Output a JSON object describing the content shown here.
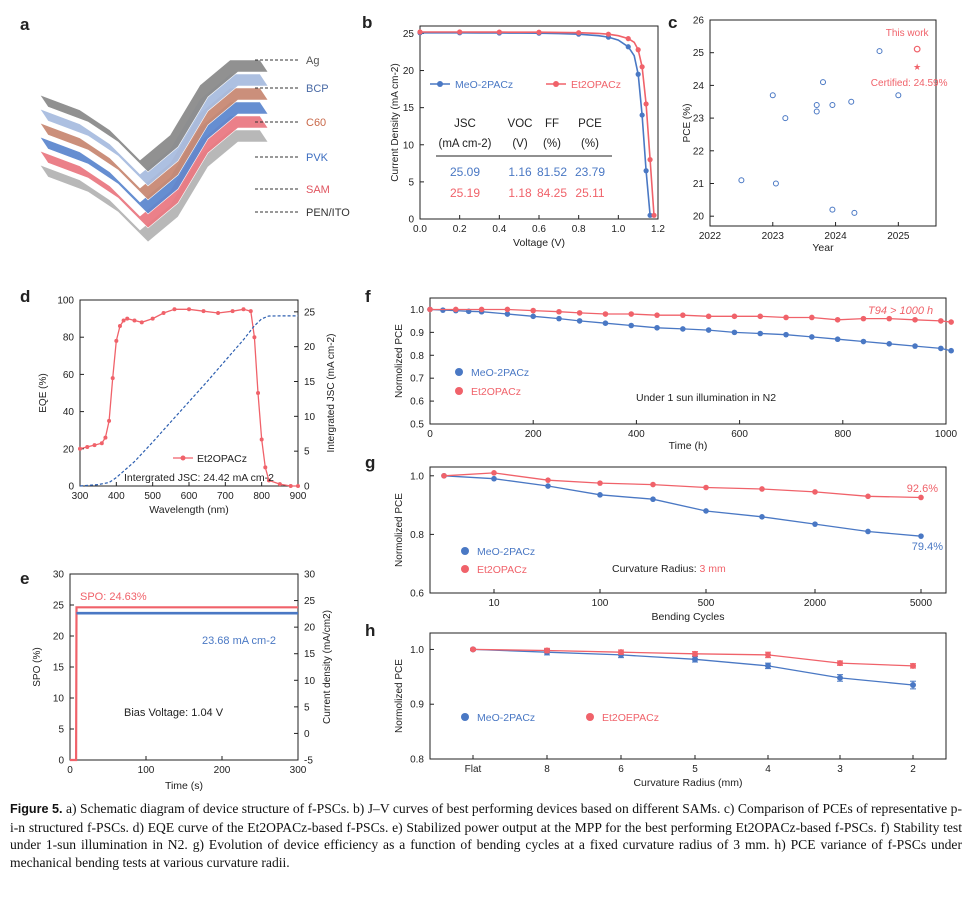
{
  "caption": {
    "label": "Figure 5.",
    "text": "a) Schematic diagram of device structure of f-PSCs. b) J–V curves of best performing devices based on different SAMs. c) Comparison of PCEs of representative p-i-n structured f-PSCs. d) EQE curve of the Et2OPACz-based f-PSCs. e) Stabilized power output at the MPP for the best performing Et2OPACz-based f-PSCs. f) Stability test under 1-sun illumination in N2. g) Evolution of device efficiency as a function of bending cycles at a fixed curvature radius of 3 mm. h) PCE variance of f-PSCs under mechanical bending tests at various curvature radii."
  },
  "colors": {
    "blue": "#4a78c4",
    "red": "#f0626a",
    "blue_dash": "#2d5fb0"
  },
  "panel_a": {
    "letter": "a",
    "layers": [
      {
        "name": "Ag",
        "color": "#8c8c8c",
        "label_color": "#555555"
      },
      {
        "name": "BCP",
        "color": "#a9bde0",
        "label_color": "#4a6aa5"
      },
      {
        "name": "C60",
        "color": "#c98a74",
        "label_color": "#c9694a"
      },
      {
        "name": "PVK",
        "color": "#5e88cf",
        "label_color": "#3c6dc0"
      },
      {
        "name": "SAM",
        "color": "#ea7a83",
        "label_color": "#e05560"
      },
      {
        "name": "PEN/ITO",
        "color": "#b5b5b5",
        "label_color": "#333333"
      }
    ]
  },
  "chart_data": [
    {
      "panel": "b",
      "type": "line",
      "xlabel": "Voltage (V)",
      "ylabel": "Current Density (mA cm-2)",
      "xlim": [
        0,
        1.2
      ],
      "ylim": [
        0,
        26
      ],
      "xticks": [
        "0.0",
        "0.2",
        "0.4",
        "0.6",
        "0.8",
        "1.0",
        "1.2"
      ],
      "yticks": [
        "0",
        "5",
        "10",
        "15",
        "20",
        "25"
      ],
      "series": [
        {
          "name": "MeO-2PACz",
          "color": "blue",
          "x": [
            0,
            0.1,
            0.2,
            0.3,
            0.4,
            0.5,
            0.6,
            0.7,
            0.8,
            0.9,
            0.95,
            1.0,
            1.05,
            1.08,
            1.1,
            1.12,
            1.14,
            1.16
          ],
          "y": [
            25.09,
            25.09,
            25.08,
            25.07,
            25.06,
            25.05,
            25.03,
            24.98,
            24.9,
            24.7,
            24.5,
            24.1,
            23.2,
            22.0,
            19.5,
            14.0,
            6.5,
            0.5
          ]
        },
        {
          "name": "Et2OPACz",
          "color": "red",
          "x": [
            0,
            0.1,
            0.2,
            0.3,
            0.4,
            0.5,
            0.6,
            0.7,
            0.8,
            0.9,
            0.95,
            1.0,
            1.05,
            1.08,
            1.1,
            1.12,
            1.14,
            1.16,
            1.18
          ],
          "y": [
            25.19,
            25.19,
            25.19,
            25.18,
            25.18,
            25.17,
            25.16,
            25.14,
            25.1,
            25.0,
            24.9,
            24.7,
            24.3,
            23.8,
            22.8,
            20.5,
            15.5,
            8.0,
            0.5
          ]
        }
      ],
      "table": {
        "headers": [
          "JSC",
          "VOC",
          "FF",
          "PCE"
        ],
        "units": [
          "(mA cm-2)",
          "(V)",
          "(%)",
          "(%)"
        ],
        "rows": [
          {
            "color": "blue",
            "values": [
              "25.09",
              "1.16",
              "81.52",
              "23.79"
            ]
          },
          {
            "color": "red",
            "values": [
              "25.19",
              "1.18",
              "84.25",
              "25.11"
            ]
          }
        ]
      }
    },
    {
      "panel": "c",
      "type": "scatter",
      "xlabel": "Year",
      "ylabel": "PCE (%)",
      "xlim": [
        2022,
        2025.6
      ],
      "ylim": [
        19.7,
        26
      ],
      "xticks": [
        "2022",
        "2023",
        "2024",
        "2025"
      ],
      "yticks": [
        "20",
        "21",
        "22",
        "23",
        "24",
        "25",
        "26"
      ],
      "points": [
        {
          "x": 2022.5,
          "y": 21.1
        },
        {
          "x": 2023.0,
          "y": 23.7
        },
        {
          "x": 2023.05,
          "y": 21.0
        },
        {
          "x": 2023.2,
          "y": 23.0
        },
        {
          "x": 2023.7,
          "y": 23.2
        },
        {
          "x": 2023.7,
          "y": 23.4
        },
        {
          "x": 2023.8,
          "y": 24.1
        },
        {
          "x": 2023.95,
          "y": 20.2
        },
        {
          "x": 2023.95,
          "y": 23.4
        },
        {
          "x": 2024.25,
          "y": 23.5
        },
        {
          "x": 2024.3,
          "y": 20.1
        },
        {
          "x": 2024.7,
          "y": 25.05
        },
        {
          "x": 2025.0,
          "y": 23.7
        }
      ],
      "this_work": {
        "x": 2025.3,
        "y": 25.11,
        "label": "This work"
      },
      "certified": {
        "x": 2025.3,
        "y": 24.59,
        "label": "Certified: 24.59%"
      }
    },
    {
      "panel": "d",
      "type": "line",
      "xlabel": "Wavelength (nm)",
      "ylabel": "EQE (%)",
      "ylabel_right": "Intergrated JSC (mA cm-2)",
      "xlim": [
        300,
        900
      ],
      "ylim": [
        0,
        100
      ],
      "ylim_right": [
        0,
        26.7
      ],
      "xticks": [
        "300",
        "400",
        "500",
        "600",
        "700",
        "800",
        "900"
      ],
      "yticks": [
        "0",
        "20",
        "40",
        "60",
        "80",
        "100"
      ],
      "yticks_right": [
        "0",
        "5",
        "10",
        "15",
        "20",
        "25"
      ],
      "series": [
        {
          "name": "Et2OPACz",
          "color": "red",
          "x": [
            300,
            320,
            340,
            360,
            370,
            380,
            390,
            400,
            410,
            420,
            430,
            450,
            470,
            500,
            530,
            560,
            600,
            640,
            680,
            720,
            750,
            770,
            780,
            790,
            800,
            810,
            820,
            850,
            880,
            900
          ],
          "y": [
            20,
            21,
            22,
            23,
            26,
            35,
            58,
            78,
            86,
            89,
            90,
            89,
            88,
            90,
            93,
            95,
            95,
            94,
            93,
            94,
            95,
            94,
            80,
            50,
            25,
            10,
            3,
            1,
            0,
            0
          ]
        },
        {
          "name": "Integrated JSC",
          "color": "blue_dash",
          "x": [
            300,
            350,
            380,
            400,
            450,
            500,
            550,
            600,
            650,
            700,
            750,
            780,
            800,
            820,
            850,
            900
          ],
          "y": [
            0,
            0.2,
            0.5,
            1.2,
            3.5,
            6.3,
            9.2,
            12.1,
            15.0,
            18.0,
            21.0,
            23.0,
            24.0,
            24.4,
            24.42,
            24.42
          ]
        }
      ],
      "legend": "Et2OPACz",
      "annotation": "Intergrated JSC: 24.42 mA cm-2"
    },
    {
      "panel": "e",
      "type": "line",
      "xlabel": "Time (s)",
      "ylabel": "SPO (%)",
      "ylabel_right": "Current density (mA/cm2)",
      "xlim": [
        0,
        300
      ],
      "ylim": [
        0,
        30
      ],
      "ylim_right": [
        -5,
        30
      ],
      "xticks": [
        "0",
        "100",
        "200",
        "300"
      ],
      "yticks": [
        "0",
        "5",
        "10",
        "15",
        "20",
        "25",
        "30"
      ],
      "yticks_right": [
        "-5",
        "0",
        "5",
        "10",
        "15",
        "20",
        "25",
        "30"
      ],
      "series": [
        {
          "name": "SPO",
          "color": "red",
          "x": [
            0,
            8,
            8.5,
            300
          ],
          "y": [
            0,
            0,
            24.63,
            24.63
          ]
        },
        {
          "name": "Current density",
          "color": "blue",
          "x": [
            8.5,
            300
          ],
          "y": [
            23.68,
            23.68
          ]
        }
      ],
      "labels": {
        "spo": "SPO: 24.63%",
        "current": "23.68 mA cm-2",
        "bias": "Bias Voltage: 1.04 V"
      }
    },
    {
      "panel": "f",
      "type": "line",
      "xlabel": "Time (h)",
      "ylabel": "Normolized PCE",
      "xlim": [
        0,
        1000
      ],
      "ylim": [
        0.5,
        1.05
      ],
      "xticks": [
        "0",
        "200",
        "400",
        "600",
        "800",
        "1000"
      ],
      "yticks": [
        "0.5",
        "0.6",
        "0.7",
        "0.8",
        "0.9",
        "1.0"
      ],
      "series": [
        {
          "name": "MeO-2PACz",
          "color": "blue",
          "x": [
            0,
            25,
            50,
            75,
            100,
            150,
            200,
            250,
            290,
            340,
            390,
            440,
            490,
            540,
            590,
            640,
            690,
            740,
            790,
            840,
            890,
            940,
            990,
            1010
          ],
          "y": [
            1.0,
            0.997,
            0.995,
            0.992,
            0.99,
            0.98,
            0.97,
            0.96,
            0.95,
            0.94,
            0.93,
            0.92,
            0.915,
            0.91,
            0.9,
            0.895,
            0.89,
            0.88,
            0.87,
            0.86,
            0.85,
            0.84,
            0.83,
            0.82
          ]
        },
        {
          "name": "Et2OPACz",
          "color": "red",
          "x": [
            0,
            50,
            100,
            150,
            200,
            250,
            290,
            340,
            390,
            440,
            490,
            540,
            590,
            640,
            690,
            740,
            790,
            840,
            890,
            940,
            990,
            1010
          ],
          "y": [
            1.0,
            1.0,
            1.0,
            1.0,
            0.995,
            0.99,
            0.985,
            0.98,
            0.98,
            0.975,
            0.975,
            0.97,
            0.97,
            0.97,
            0.965,
            0.965,
            0.955,
            0.96,
            0.96,
            0.955,
            0.95,
            0.945
          ]
        }
      ],
      "annotation": "T94 > 1000 h",
      "condition": "Under 1 sun illumination in N2"
    },
    {
      "panel": "g",
      "type": "line",
      "xlabel": "Bending Cycles",
      "ylabel": "Normolized PCE",
      "ylim": [
        0.6,
        1.03
      ],
      "xticks": [
        "10",
        "100",
        "500",
        "2000",
        "5000"
      ],
      "yticks": [
        "0.6",
        "0.8",
        "1.0"
      ],
      "x_positions": [
        3,
        10,
        30,
        100,
        300,
        500,
        1000,
        2000,
        3000,
        5000
      ],
      "series": [
        {
          "name": "MeO-2PACz",
          "color": "blue",
          "y": [
            1.0,
            0.99,
            0.965,
            0.935,
            0.92,
            0.88,
            0.86,
            0.835,
            0.81,
            0.794
          ]
        },
        {
          "name": "Et2OPACz",
          "color": "red",
          "y": [
            1.0,
            1.01,
            0.985,
            0.975,
            0.97,
            0.96,
            0.955,
            0.945,
            0.93,
            0.926
          ]
        }
      ],
      "end_labels": {
        "blue": "79.4%",
        "red": "92.6%"
      },
      "condition_prefix": "Curvature Radius: ",
      "condition_value": "3 mm"
    },
    {
      "panel": "h",
      "type": "line",
      "xlabel": "Curvature Radius (mm)",
      "ylabel": "Normolized PCE",
      "ylim": [
        0.8,
        1.03
      ],
      "categories": [
        "Flat",
        "8",
        "6",
        "5",
        "4",
        "3",
        "2"
      ],
      "yticks": [
        "0.8",
        "0.9",
        "1.0"
      ],
      "series": [
        {
          "name": "MeO-2PACz",
          "color": "blue",
          "values": [
            1.0,
            0.995,
            0.99,
            0.982,
            0.97,
            0.948,
            0.935
          ],
          "errors": [
            0.002,
            0.005,
            0.005,
            0.005,
            0.005,
            0.006,
            0.007
          ]
        },
        {
          "name": "Et2OEPACz",
          "color": "red",
          "values": [
            1.0,
            0.998,
            0.995,
            0.992,
            0.99,
            0.975,
            0.97
          ],
          "errors": [
            0.002,
            0.004,
            0.004,
            0.004,
            0.005,
            0.004,
            0.004
          ]
        }
      ]
    }
  ]
}
